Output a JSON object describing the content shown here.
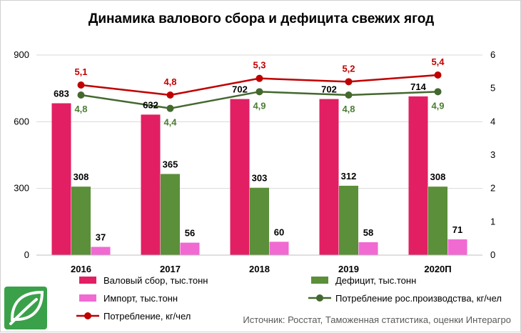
{
  "chart_data": {
    "type": "bar",
    "title": "Динамика валового сбора и дефицита свежих ягод",
    "categories": [
      "2016",
      "2017",
      "2018",
      "2019",
      "2020П"
    ],
    "y_left": {
      "ylim": [
        0,
        900
      ],
      "ticks": [
        "0",
        "300",
        "600",
        "900"
      ]
    },
    "y_right": {
      "ylim": [
        0,
        6
      ],
      "ticks": [
        "0",
        "1",
        "2",
        "3",
        "4",
        "5",
        "6"
      ]
    },
    "grid": "horizontal",
    "legend_position": "bottom",
    "series": [
      {
        "name": "Валовый сбор, тыс.тонн",
        "type": "bar",
        "axis": "left",
        "color": "#e21f63",
        "values": [
          683,
          632,
          702,
          702,
          714
        ],
        "labels": [
          "683",
          "632",
          "702",
          "702",
          "714"
        ]
      },
      {
        "name": "Дефицит, тыс.тонн",
        "type": "bar",
        "axis": "left",
        "color": "#5b8f3a",
        "values": [
          308,
          365,
          303,
          312,
          308
        ],
        "labels": [
          "308",
          "365",
          "303",
          "312",
          "308"
        ]
      },
      {
        "name": "Импорт, тыс.тонн",
        "type": "bar",
        "axis": "left",
        "color": "#f06ad2",
        "values": [
          37,
          56,
          60,
          58,
          71
        ],
        "labels": [
          "37",
          "56",
          "60",
          "58",
          "71"
        ]
      },
      {
        "name": "Потребление рос.производства, кг/чел",
        "type": "line",
        "axis": "right",
        "color": "#44682e",
        "values": [
          4.8,
          4.4,
          4.9,
          4.8,
          4.9
        ],
        "labels": [
          "4,8",
          "4,4",
          "4,9",
          "4,8",
          "4,9"
        ]
      },
      {
        "name": "Потребление, кг/чел",
        "type": "line",
        "axis": "right",
        "color": "#c00000",
        "values": [
          5.1,
          4.8,
          5.3,
          5.2,
          5.4
        ],
        "labels": [
          "5,1",
          "4,8",
          "5,3",
          "5,2",
          "5,4"
        ]
      }
    ],
    "source_note": "Источник: Росстат, Таможенная статистика, оценки Интерагро"
  },
  "logo": {
    "name": "leaf-logo",
    "color": "#3aa14a"
  }
}
